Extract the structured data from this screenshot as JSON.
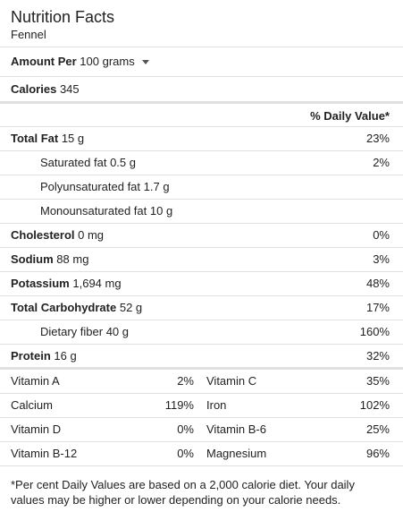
{
  "title": "Nutrition Facts",
  "subtitle": "Fennel",
  "amount": {
    "label": "Amount Per",
    "value": "100 grams"
  },
  "calories": {
    "label": "Calories",
    "value": "345"
  },
  "dv_header": "% Daily Value*",
  "nutrients": [
    {
      "label": "Total Fat",
      "amount": "15 g",
      "dv": "23%",
      "bold": true,
      "indent": false
    },
    {
      "label": "Saturated fat",
      "amount": "0.5 g",
      "dv": "2%",
      "bold": false,
      "indent": true
    },
    {
      "label": "Polyunsaturated fat",
      "amount": "1.7 g",
      "dv": "",
      "bold": false,
      "indent": true
    },
    {
      "label": "Monounsaturated fat",
      "amount": "10 g",
      "dv": "",
      "bold": false,
      "indent": true
    },
    {
      "label": "Cholesterol",
      "amount": "0 mg",
      "dv": "0%",
      "bold": true,
      "indent": false
    },
    {
      "label": "Sodium",
      "amount": "88 mg",
      "dv": "3%",
      "bold": true,
      "indent": false
    },
    {
      "label": "Potassium",
      "amount": "1,694 mg",
      "dv": "48%",
      "bold": true,
      "indent": false
    },
    {
      "label": "Total Carbohydrate",
      "amount": "52 g",
      "dv": "17%",
      "bold": true,
      "indent": false
    },
    {
      "label": "Dietary fiber",
      "amount": "40 g",
      "dv": "160%",
      "bold": false,
      "indent": true
    },
    {
      "label": "Protein",
      "amount": "16 g",
      "dv": "32%",
      "bold": true,
      "indent": false
    }
  ],
  "vitamins": [
    {
      "left_label": "Vitamin A",
      "left_value": "2%",
      "right_label": "Vitamin C",
      "right_value": "35%"
    },
    {
      "left_label": "Calcium",
      "left_value": "119%",
      "right_label": "Iron",
      "right_value": "102%"
    },
    {
      "left_label": "Vitamin D",
      "left_value": "0%",
      "right_label": "Vitamin B-6",
      "right_value": "25%"
    },
    {
      "left_label": "Vitamin B-12",
      "left_value": "0%",
      "right_label": "Magnesium",
      "right_value": "96%"
    }
  ],
  "footnote": "*Per cent Daily Values are based on a 2,000 calorie diet. Your daily values may be higher or lower depending on your calorie needs."
}
